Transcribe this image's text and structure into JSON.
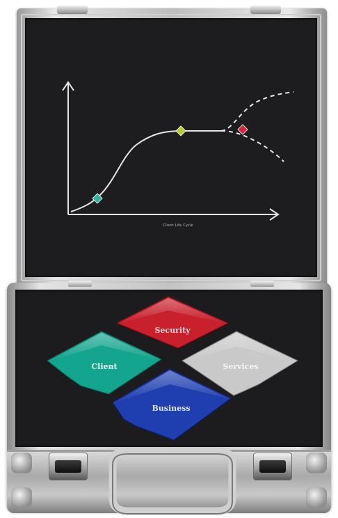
{
  "lid": {
    "chart_caption": "Client Life Cycle",
    "curve_markers": [
      {
        "name": "early",
        "color": "#2fb59b"
      },
      {
        "name": "plateau",
        "color": "#b8c93a"
      },
      {
        "name": "branch",
        "color": "#d2283c"
      }
    ]
  },
  "tiles": [
    {
      "label": "Security",
      "color": "#c8202c"
    },
    {
      "label": "Client",
      "color": "#14a58e"
    },
    {
      "label": "Services",
      "color": "#c9c9c9"
    },
    {
      "label": "Business",
      "color": "#1f3fb0"
    }
  ]
}
